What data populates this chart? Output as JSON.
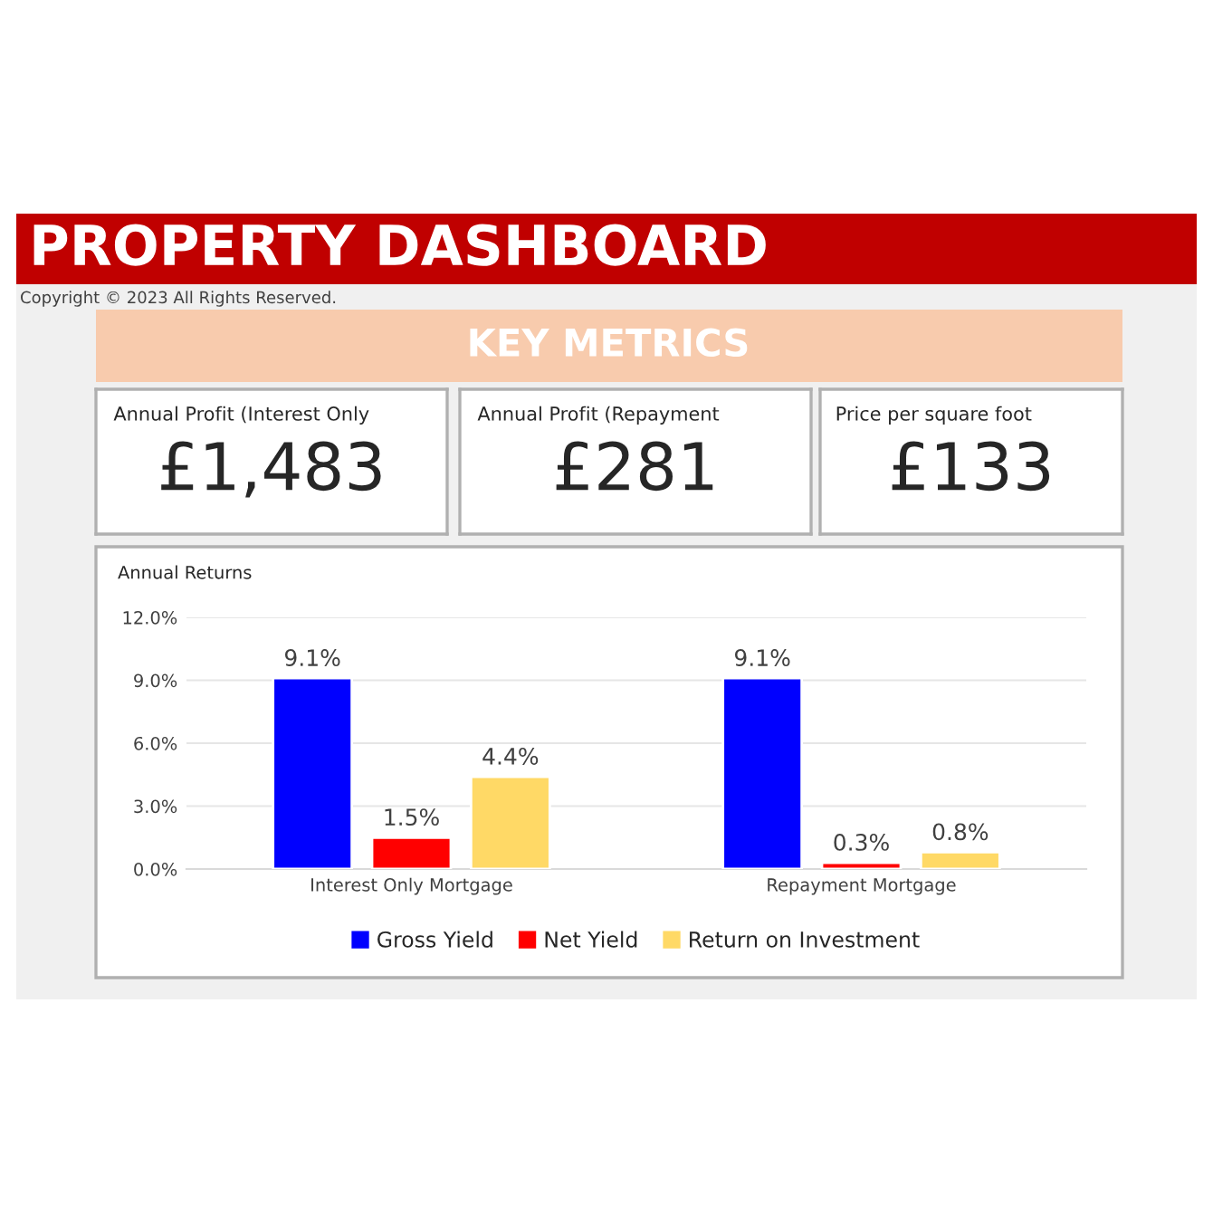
{
  "chart_data": [
    {
      "type": "other",
      "title": "PROPERTY DASHBOARD",
      "subtitle": "KEY METRICS",
      "annotations": [
        "Copyright © 2023 All Rights Reserved."
      ]
    },
    {
      "type": "other",
      "title": "Annual Profit (Interest Only",
      "annotations": [
        "£1,483"
      ]
    },
    {
      "type": "other",
      "title": "Annual Profit (Repayment",
      "annotations": [
        "£281"
      ]
    },
    {
      "type": "other",
      "title": "Price per square foot",
      "annotations": [
        "£133"
      ]
    },
    {
      "type": "bar",
      "title": "Annual Returns",
      "categories": [
        "Interest Only Mortgage",
        "Repayment Mortgage"
      ],
      "series": [
        {
          "name": "Gross Yield",
          "color": "#0000ff",
          "values": [
            9.1,
            9.1
          ],
          "value_labels": [
            "9.1%",
            "9.1%"
          ]
        },
        {
          "name": "Net Yield",
          "color": "#ff0000",
          "values": [
            1.5,
            0.3
          ],
          "value_labels": [
            "1.5%",
            "0.3%"
          ]
        },
        {
          "name": "Return on Investment",
          "color": "#ffd966",
          "values": [
            4.4,
            0.8
          ],
          "value_labels": [
            "4.4%",
            "0.8%"
          ]
        }
      ],
      "ylim": [
        0,
        12
      ],
      "yticks": [
        {
          "value": 0,
          "label": "0.0%"
        },
        {
          "value": 3,
          "label": "3.0%"
        },
        {
          "value": 6,
          "label": "6.0%"
        },
        {
          "value": 9,
          "label": "9.0%"
        },
        {
          "value": 12,
          "label": "12.0%"
        }
      ],
      "grid": "y",
      "legend": "bottom"
    }
  ]
}
